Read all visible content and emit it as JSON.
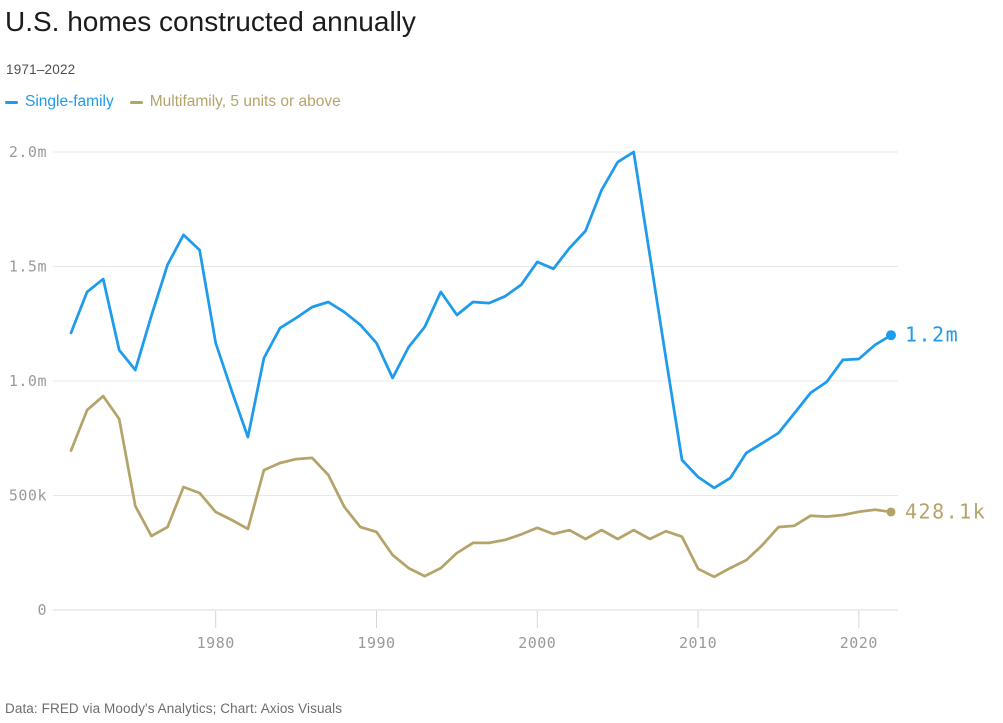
{
  "header": {
    "title": "U.S. homes constructed annually",
    "subtitle": "1971–2022"
  },
  "legend": [
    {
      "label": "Single-family",
      "color": "#1e9beb"
    },
    {
      "label": "Multifamily, 5 units or above",
      "color": "#b5a46a"
    }
  ],
  "footer": {
    "text": "Data: FRED via Moody's Analytics; Chart: Axios Visuals"
  },
  "colors": {
    "grid": "#e8e8e8",
    "zero_line": "#dbdbdb",
    "tick": "#d6d6d6",
    "axis_text": "#9a9a9a",
    "background": "#ffffff"
  },
  "chart_data": {
    "type": "line",
    "title": "U.S. homes constructed annually",
    "subtitle": "1971–2022",
    "xlabel": "",
    "ylabel": "",
    "units": "thousands of homes",
    "grid": true,
    "legend_position": "top-left",
    "xlim": [
      1971,
      2022
    ],
    "ylim": [
      0,
      2000
    ],
    "x": [
      1971,
      1972,
      1973,
      1974,
      1975,
      1976,
      1977,
      1978,
      1979,
      1980,
      1981,
      1982,
      1983,
      1984,
      1985,
      1986,
      1987,
      1988,
      1989,
      1990,
      1991,
      1992,
      1993,
      1994,
      1995,
      1996,
      1997,
      1998,
      1999,
      2000,
      2001,
      2002,
      2003,
      2004,
      2005,
      2006,
      2007,
      2008,
      2009,
      2010,
      2011,
      2012,
      2013,
      2014,
      2015,
      2016,
      2017,
      2018,
      2019,
      2020,
      2021,
      2022
    ],
    "xticks": [
      {
        "value": 1980,
        "label": "1980"
      },
      {
        "value": 1990,
        "label": "1990"
      },
      {
        "value": 2000,
        "label": "2000"
      },
      {
        "value": 2010,
        "label": "2010"
      },
      {
        "value": 2020,
        "label": "2020"
      }
    ],
    "yticks": [
      {
        "value": 0,
        "label": "0"
      },
      {
        "value": 500,
        "label": "500k"
      },
      {
        "value": 1000,
        "label": "1.0m"
      },
      {
        "value": 1500,
        "label": "1.5m"
      },
      {
        "value": 2000,
        "label": "2.0m"
      }
    ],
    "series": [
      {
        "name": "Single-family",
        "color": "#1e9beb",
        "end_label": "1.2m",
        "end_dot_radius": 5,
        "values": [
          1210,
          1389,
          1445,
          1135,
          1048,
          1285,
          1507,
          1638,
          1572,
          1166,
          956,
          755,
          1100,
          1231,
          1275,
          1323,
          1345,
          1301,
          1245,
          1166,
          1013,
          1148,
          1236,
          1389,
          1288,
          1345,
          1340,
          1370,
          1420,
          1520,
          1490,
          1580,
          1655,
          1834,
          1956,
          2000,
          1550,
          1100,
          655,
          581,
          533,
          576,
          686,
          729,
          773,
          860,
          948,
          996,
          1092,
          1096,
          1157,
          1200
        ]
      },
      {
        "name": "Multifamily, 5 units or above",
        "color": "#b5a46a",
        "end_label": "428.1k",
        "end_dot_radius": 4.5,
        "values": [
          696,
          873,
          934,
          834,
          454,
          323,
          362,
          537,
          511,
          428,
          393,
          354,
          611,
          642,
          659,
          664,
          590,
          450,
          362,
          341,
          240,
          183,
          148,
          183,
          249,
          293,
          293,
          306,
          330,
          359,
          332,
          349,
          310,
          349,
          310,
          349,
          310,
          344,
          320,
          180,
          145,
          183,
          218,
          284,
          362,
          368,
          412,
          408,
          415,
          429,
          438,
          428.1
        ]
      }
    ]
  }
}
